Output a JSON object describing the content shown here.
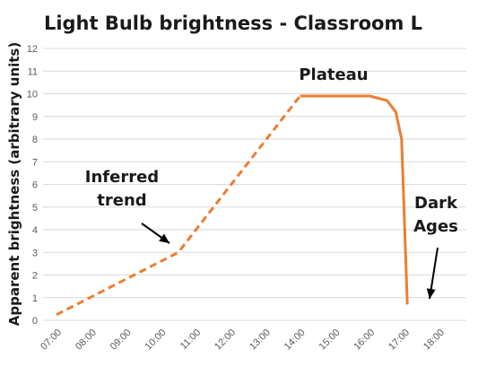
{
  "chart_data": {
    "type": "line",
    "title": "Light Bulb brightness - Classroom L",
    "xlabel": "",
    "ylabel": "Apparent brightness (arbitrary units)",
    "ylim": [
      0,
      12
    ],
    "yticks": [
      "0",
      "1",
      "2",
      "3",
      "4",
      "5",
      "6",
      "7",
      "8",
      "9",
      "10",
      "11",
      "12"
    ],
    "x_tick_labels": [
      "07:00",
      "08:00",
      "09:00",
      "10:00",
      "11:00",
      "12:00",
      "13:00",
      "14:00",
      "15:00",
      "16:00",
      "17:00",
      "18:00"
    ],
    "grid": true,
    "line_color": "#ED7D31",
    "series": [
      {
        "style": "dashed",
        "x": [
          "07:00",
          "10:30",
          "14:00"
        ],
        "y": [
          0.25,
          3.0,
          9.9
        ]
      },
      {
        "style": "solid",
        "x": [
          "14:00",
          "15:00",
          "15:30",
          "16:00",
          "16:30",
          "16:45",
          "16:55",
          "17:05"
        ],
        "y": [
          9.9,
          9.9,
          9.9,
          9.9,
          9.7,
          9.2,
          8.0,
          0.7
        ]
      }
    ],
    "annotations": [
      {
        "name": "annotation-inferred-trend",
        "lines": [
          "Inferred",
          "trend"
        ]
      },
      {
        "name": "annotation-plateau",
        "lines": [
          "Plateau"
        ]
      },
      {
        "name": "annotation-dark-ages",
        "lines": [
          "Dark",
          "Ages"
        ]
      }
    ]
  }
}
